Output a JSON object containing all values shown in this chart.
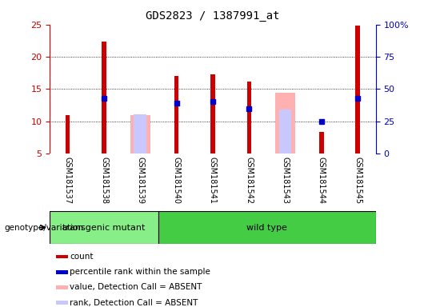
{
  "title": "GDS2823 / 1387991_at",
  "samples": [
    "GSM181537",
    "GSM181538",
    "GSM181539",
    "GSM181540",
    "GSM181541",
    "GSM181542",
    "GSM181543",
    "GSM181544",
    "GSM181545"
  ],
  "count_values": [
    10.9,
    22.4,
    null,
    17.0,
    17.3,
    16.2,
    null,
    8.4,
    24.8
  ],
  "rank_values": [
    null,
    13.6,
    null,
    12.8,
    13.0,
    12.0,
    null,
    10.0,
    13.6
  ],
  "absent_value_values": [
    null,
    null,
    11.0,
    null,
    null,
    null,
    14.4,
    null,
    null
  ],
  "absent_rank_values": [
    null,
    null,
    11.1,
    null,
    null,
    null,
    11.8,
    null,
    null
  ],
  "count_color": "#cc0000",
  "rank_color": "#0000cc",
  "absent_value_color": "#ffb0b0",
  "absent_rank_color": "#c8c8ff",
  "bar_bottom": 5.0,
  "ylim_left": [
    5,
    25
  ],
  "ylim_right": [
    0,
    100
  ],
  "yticks_left": [
    5,
    10,
    15,
    20,
    25
  ],
  "yticks_right": [
    0,
    25,
    50,
    75,
    100
  ],
  "ytick_labels_right": [
    "0",
    "25",
    "50",
    "75",
    "100%"
  ],
  "groups": [
    {
      "label": "transgenic mutant",
      "start": 0,
      "end": 3,
      "color": "#88ee88"
    },
    {
      "label": "wild type",
      "start": 3,
      "end": 9,
      "color": "#44cc44"
    }
  ],
  "group_row_label": "genotype/variation",
  "legend": [
    {
      "label": "count",
      "color": "#cc0000"
    },
    {
      "label": "percentile rank within the sample",
      "color": "#0000cc"
    },
    {
      "label": "value, Detection Call = ABSENT",
      "color": "#ffb0b0"
    },
    {
      "label": "rank, Detection Call = ABSENT",
      "color": "#c8c8ff"
    }
  ],
  "bar_width": 0.4,
  "background_color": "#ffffff",
  "tick_label_color_left": "#cc0000",
  "tick_label_color_right": "#0000cc",
  "xtick_bg_color": "#cccccc",
  "grid_yticks": [
    10,
    15,
    20
  ]
}
